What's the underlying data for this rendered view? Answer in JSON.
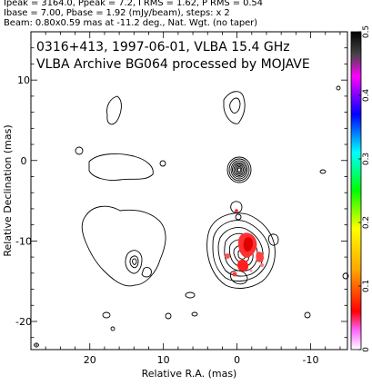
{
  "header": {
    "line1": "Ipeak = 3164.0, Ppeak = 7.2, I RMS = 1.62, P RMS = 0.54",
    "line2": "Ibase = 7.00, Pbase = 1.92 (mJy/beam), steps: x 2",
    "line3": "Beam: 0.80x0.59 mas at -11.2 deg., Nat. Wgt. (no taper)"
  },
  "chart_data": {
    "type": "heatmap",
    "title": "0316+413, 1997-06-01, VLBA 15.4 GHz",
    "subtitle": "VLBA Archive BG064 processed by MOJAVE",
    "xlabel": "Relative R.A. (mas)",
    "ylabel": "Relative Declination (mas)",
    "xlim": [
      28,
      -15
    ],
    "ylim": [
      -23.5,
      16
    ],
    "x_ticks": [
      20,
      10,
      0,
      -10
    ],
    "y_ticks": [
      10,
      0,
      -10,
      -20
    ],
    "colorbar": {
      "min": 0,
      "max": 0.5,
      "ticks": [
        0,
        0.1,
        0.2,
        0.3,
        0.4,
        0.5
      ],
      "colors": [
        "#ffffff",
        "#ff00ff",
        "#0000ff",
        "#00ffff",
        "#00ff00",
        "#ffff00",
        "#ff0000",
        "#ffffff",
        "#000000"
      ]
    },
    "core": {
      "x": -0.8,
      "y": 0.0
    }
  }
}
